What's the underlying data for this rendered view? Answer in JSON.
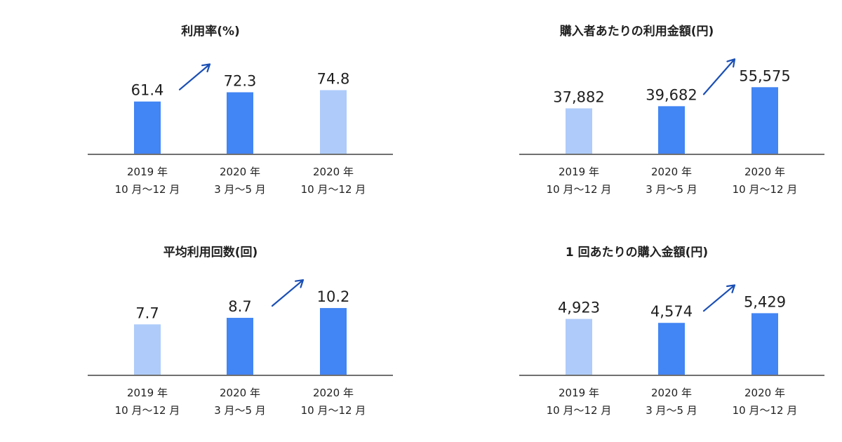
{
  "colors": {
    "bar_dark": "#4285f4",
    "bar_light": "#aecbfa",
    "axis": "#707070",
    "arrow": "#1a4fb5",
    "text": "#1f1f1f"
  },
  "chart_data": [
    {
      "type": "bar",
      "title": "利用率(%)",
      "categories": [
        [
          "2019 年",
          "10 月〜12 月"
        ],
        [
          "2020 年",
          "3 月〜5 月"
        ],
        [
          "2020 年",
          "10 月〜12 月"
        ]
      ],
      "values": [
        61.4,
        72.3,
        74.8
      ],
      "value_labels": [
        "61.4",
        "72.3",
        "74.8"
      ],
      "bar_colors": [
        "dark",
        "dark",
        "light"
      ],
      "arrow_between": [
        0,
        1
      ],
      "ylim": [
        0,
        100
      ]
    },
    {
      "type": "bar",
      "title": "購入者あたりの利用金額(円)",
      "categories": [
        [
          "2019 年",
          "10 月〜12 月"
        ],
        [
          "2020 年",
          "3 月〜5 月"
        ],
        [
          "2020 年",
          "10 月〜12 月"
        ]
      ],
      "values": [
        37882,
        39682,
        55575
      ],
      "value_labels": [
        "37,882",
        "39,682",
        "55,575"
      ],
      "bar_colors": [
        "light",
        "dark",
        "dark"
      ],
      "arrow_between": [
        1,
        2
      ],
      "ylim": [
        0,
        71000
      ]
    },
    {
      "type": "bar",
      "title": "平均利用回数(回)",
      "categories": [
        [
          "2019 年",
          "10 月〜12 月"
        ],
        [
          "2020 年",
          "3 月〜5 月"
        ],
        [
          "2020 年",
          "10 月〜12 月"
        ]
      ],
      "values": [
        7.7,
        8.7,
        10.2
      ],
      "value_labels": [
        "7.7",
        "8.7",
        "10.2"
      ],
      "bar_colors": [
        "light",
        "dark",
        "dark"
      ],
      "arrow_between": [
        1,
        2
      ],
      "ylim": [
        0,
        13
      ]
    },
    {
      "type": "bar",
      "title": "1 回あたりの購入金額(円)",
      "categories": [
        [
          "2019 年",
          "10 月〜12 月"
        ],
        [
          "2020 年",
          "3 月〜5 月"
        ],
        [
          "2020 年",
          "10 月〜12 月"
        ]
      ],
      "values": [
        4923,
        4574,
        5429
      ],
      "value_labels": [
        "4,923",
        "4,574",
        "5,429"
      ],
      "bar_colors": [
        "light",
        "dark",
        "dark"
      ],
      "arrow_between": [
        1,
        2
      ],
      "ylim": [
        0,
        7500
      ]
    }
  ]
}
